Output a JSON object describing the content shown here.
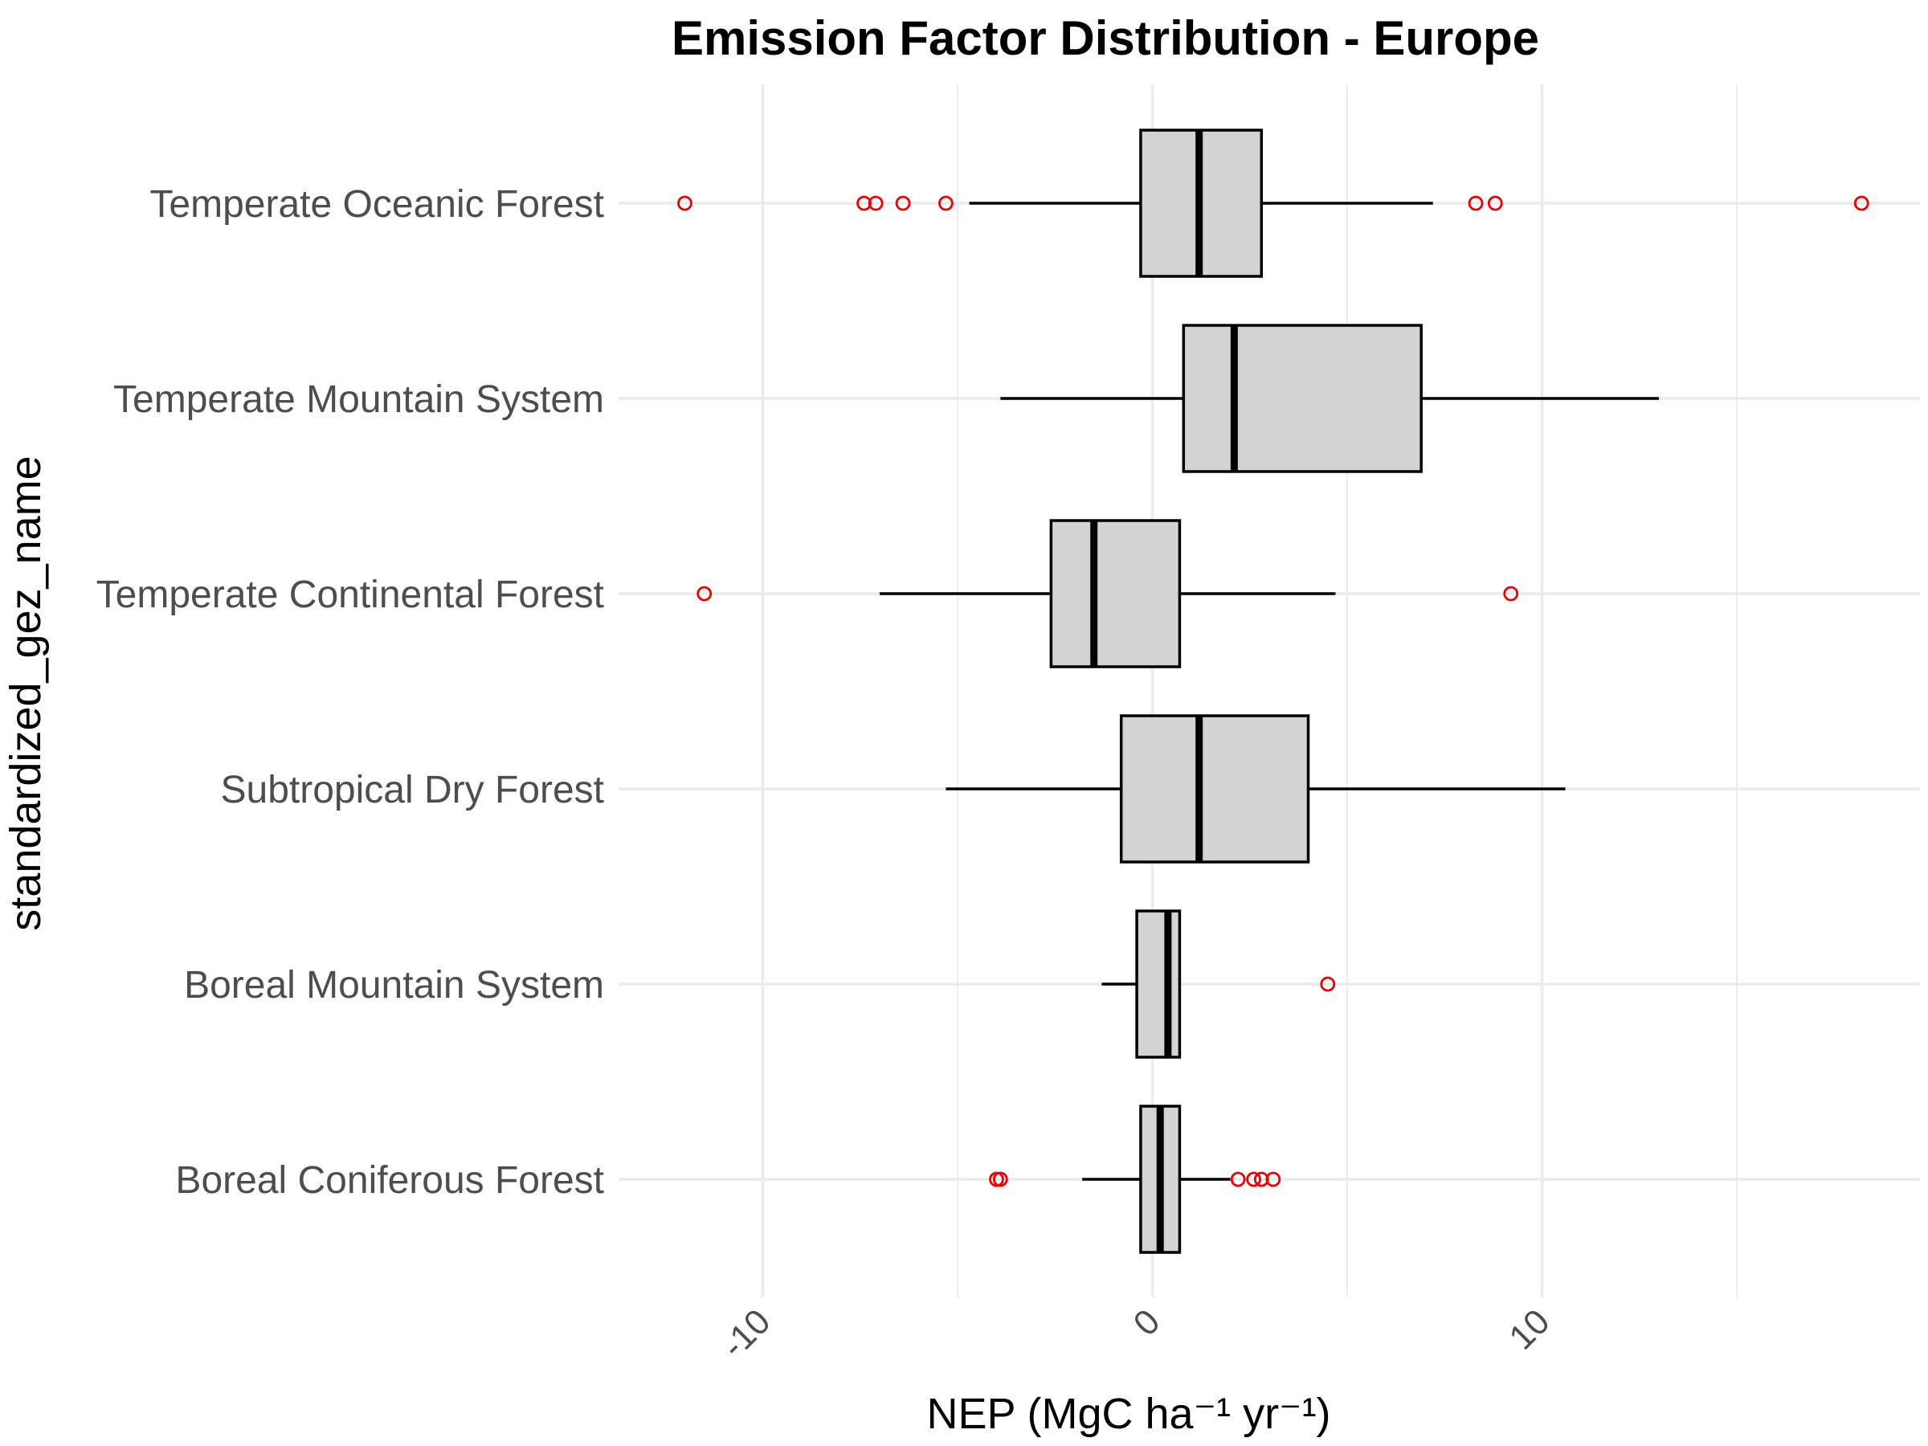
{
  "chart_data": {
    "type": "boxplot",
    "orientation": "horizontal",
    "title": "Emission Factor Distribution - Europe",
    "xlabel": "NEP (MgC ha⁻¹ yr⁻¹)",
    "ylabel": "standardized_gez_name",
    "xlim": [
      -13.7,
      19.7
    ],
    "x_ticks": [
      -10,
      0,
      10
    ],
    "x_tick_labels": [
      "-10",
      "0",
      "10"
    ],
    "grid": true,
    "legend": "none",
    "box_fill": "#d3d3d3",
    "outlier_color": "#ee0000",
    "categories": [
      "Temperate Oceanic Forest",
      "Temperate Mountain System",
      "Temperate Continental Forest",
      "Subtropical Dry Forest",
      "Boreal Mountain System",
      "Boreal Coniferous Forest"
    ],
    "boxes": [
      {
        "category": "Temperate Oceanic Forest",
        "whisker_low": -4.7,
        "q1": -0.3,
        "median": 1.2,
        "q3": 2.8,
        "whisker_high": 7.2,
        "outliers": [
          -12.0,
          -7.4,
          -7.1,
          -6.4,
          -5.3,
          8.3,
          8.8,
          18.2
        ]
      },
      {
        "category": "Temperate Mountain System",
        "whisker_low": -3.9,
        "q1": 0.8,
        "median": 2.1,
        "q3": 6.9,
        "whisker_high": 13.0,
        "outliers": []
      },
      {
        "category": "Temperate Continental Forest",
        "whisker_low": -7.0,
        "q1": -2.6,
        "median": -1.5,
        "q3": 0.7,
        "whisker_high": 4.7,
        "outliers": [
          -11.5,
          9.2
        ]
      },
      {
        "category": "Subtropical Dry Forest",
        "whisker_low": -5.3,
        "q1": -0.8,
        "median": 1.2,
        "q3": 4.0,
        "whisker_high": 10.6,
        "outliers": []
      },
      {
        "category": "Boreal Mountain System",
        "whisker_low": -1.3,
        "q1": -0.4,
        "median": 0.4,
        "q3": 0.7,
        "whisker_high": 0.7,
        "outliers": [
          4.5
        ]
      },
      {
        "category": "Boreal Coniferous Forest",
        "whisker_low": -1.8,
        "q1": -0.3,
        "median": 0.2,
        "q3": 0.7,
        "whisker_high": 2.0,
        "outliers": [
          -4.0,
          -3.9,
          2.2,
          2.6,
          2.8,
          3.1
        ]
      }
    ]
  }
}
